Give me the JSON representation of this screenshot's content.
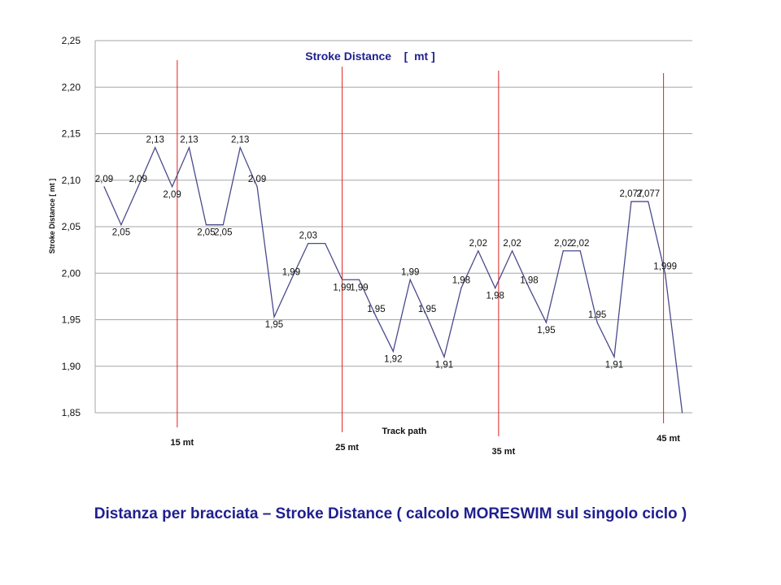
{
  "chart_data": {
    "type": "line",
    "title": "Stroke Distance    [  mt ]",
    "ylabel": "Stroke Distance [ mt ]",
    "xlabel": "Track path",
    "ylim": [
      1.85,
      2.25
    ],
    "yticks": [
      "1,85",
      "1,90",
      "1,95",
      "2,00",
      "2,05",
      "2,10",
      "2,15",
      "2,20",
      "2,25"
    ],
    "grid": true,
    "series": [
      {
        "values": [
          2.093,
          2.052,
          2.093,
          2.135,
          2.093,
          2.135,
          2.052,
          2.052,
          2.135,
          2.093,
          1.953,
          1.993,
          2.032,
          2.032,
          1.993,
          1.993,
          1.953,
          1.916,
          1.993,
          1.953,
          1.91,
          1.984,
          2.024,
          1.984,
          2.024,
          1.984,
          1.947,
          2.024,
          2.024,
          1.947,
          1.91,
          2.077,
          2.077,
          1.999,
          1.85
        ],
        "labels": [
          "2,09",
          "2,05",
          "2,09",
          "2,13",
          "2,09",
          "2,13",
          "2,05",
          "2,05",
          "2,13",
          "2,09",
          "1,95",
          "1,99",
          "2,03",
          "",
          "1,99",
          "1,99",
          "1,95",
          "1,92",
          "1,99",
          "1,95",
          "1,91",
          "1,98",
          "2,02",
          "1,98",
          "2,02",
          "1,98",
          "1,95",
          "2,02",
          "2,02",
          "1,95",
          "1,91",
          "2,077",
          "2,077",
          "1,999",
          ""
        ]
      }
    ],
    "markers": [
      {
        "label": "15 mt",
        "index": 4.3
      },
      {
        "label": "25 mt",
        "index": 14.0
      },
      {
        "label": "35 mt",
        "index": 23.2
      },
      {
        "label": "45 mt",
        "index": 32.9
      }
    ],
    "colors": {
      "line": "#4a4a8c",
      "marker": "#e02020",
      "title": "#1f1f8f",
      "grid": "#a6a6a6"
    }
  },
  "caption": "Distanza  per bracciata – Stroke Distance  ( calcolo MORESWIM  sul singolo ciclo )"
}
